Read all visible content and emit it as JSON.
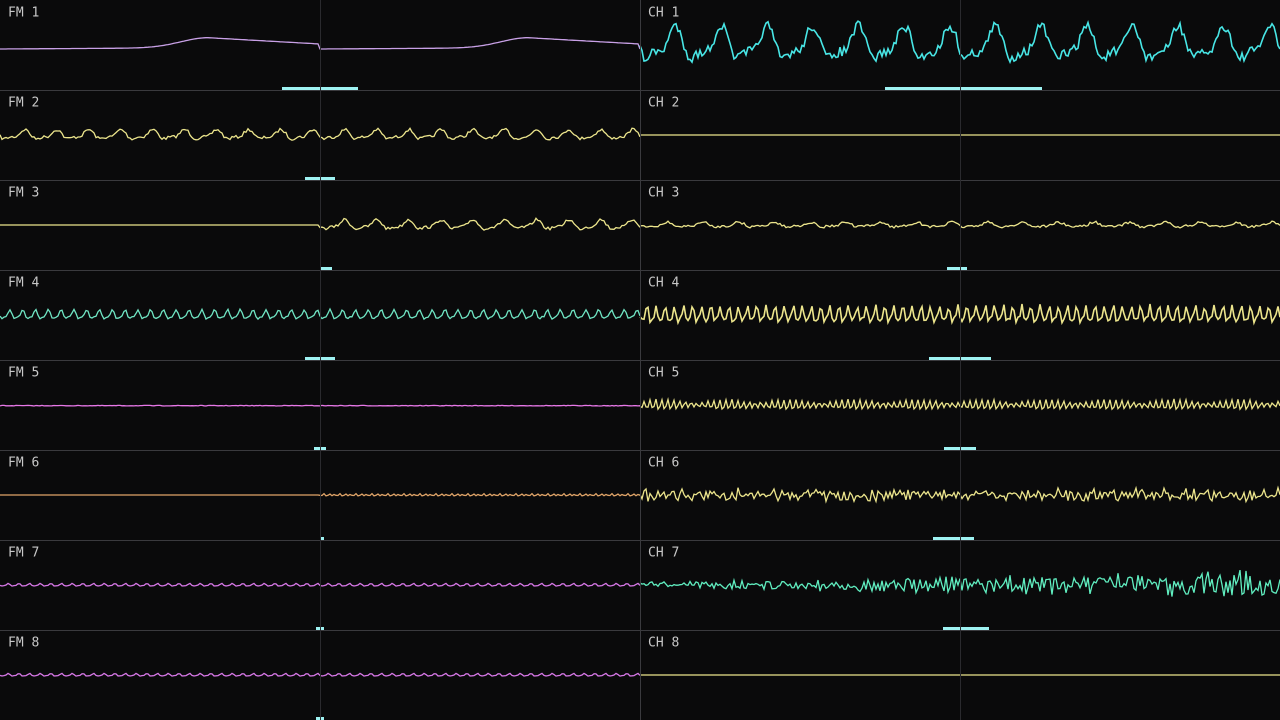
{
  "left_channels": [
    "FM 1",
    "FM 2",
    "FM 3",
    "FM 4",
    "FM 5",
    "FM 6",
    "FM 7",
    "FM 8"
  ],
  "right_channels": [
    "CH 1",
    "CH 2",
    "CH 3",
    "CH 4",
    "CH 5",
    "CH 6",
    "CH 7",
    "CH 8"
  ]
}
